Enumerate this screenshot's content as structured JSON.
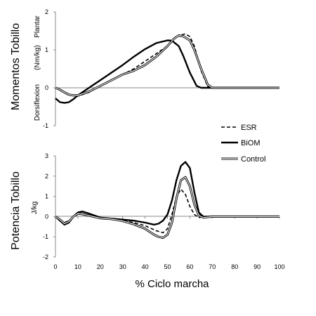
{
  "chart_data": [
    {
      "type": "line",
      "ylabel": "Momentos Tobillo",
      "units": "(Nm/kg)",
      "upper_label": "Plantar",
      "lower_label": "Dorsiflexion",
      "ylim": [
        -1,
        2
      ],
      "yticks": [
        "2",
        "1",
        "0",
        "-1"
      ],
      "xlim": [
        0,
        100
      ],
      "grid": false,
      "series": [
        {
          "name": "ESR",
          "style": "dashed",
          "x": [
            0,
            3,
            6,
            10,
            15,
            20,
            25,
            30,
            35,
            40,
            45,
            50,
            53,
            55,
            58,
            60,
            62,
            65,
            68,
            70,
            75,
            80,
            90,
            100
          ],
          "y": [
            0,
            -0.1,
            -0.2,
            -0.22,
            -0.12,
            0.05,
            0.2,
            0.35,
            0.5,
            0.7,
            0.9,
            1.1,
            1.3,
            1.38,
            1.42,
            1.35,
            1.1,
            0.45,
            0.03,
            0,
            0,
            0,
            0,
            0
          ]
        },
        {
          "name": "BiOM",
          "style": "thick",
          "x": [
            0,
            2,
            4,
            6,
            8,
            10,
            15,
            20,
            25,
            30,
            35,
            40,
            45,
            50,
            52,
            55,
            57,
            60,
            63,
            65,
            68,
            70,
            75,
            80,
            90,
            100
          ],
          "y": [
            -0.28,
            -0.38,
            -0.4,
            -0.38,
            -0.3,
            -0.2,
            0,
            0.2,
            0.4,
            0.6,
            0.82,
            1.02,
            1.18,
            1.25,
            1.24,
            1.1,
            0.85,
            0.4,
            0.05,
            0,
            0,
            0,
            0,
            0,
            0,
            0
          ]
        },
        {
          "name": "Control",
          "style": "double",
          "x": [
            0,
            2,
            4,
            6,
            8,
            10,
            15,
            20,
            25,
            30,
            35,
            40,
            45,
            50,
            53,
            55,
            57,
            60,
            62,
            65,
            68,
            70,
            75,
            80,
            90,
            100
          ],
          "y": [
            0,
            -0.05,
            -0.12,
            -0.18,
            -0.2,
            -0.2,
            -0.1,
            0.05,
            0.2,
            0.35,
            0.45,
            0.6,
            0.82,
            1.1,
            1.3,
            1.38,
            1.36,
            1.25,
            1.0,
            0.5,
            0.08,
            0,
            0,
            0,
            0,
            0
          ]
        }
      ]
    },
    {
      "type": "line",
      "ylabel": "Potencia Tobillo",
      "units": "J/kg",
      "xlabel": "% Ciclo marcha",
      "ylim": [
        -2,
        3
      ],
      "yticks": [
        "3",
        "2",
        "1",
        "0",
        "-1",
        "-2"
      ],
      "xlim": [
        0,
        100
      ],
      "xticks": [
        "0",
        "10",
        "20",
        "30",
        "40",
        "50",
        "60",
        "70",
        "80",
        "90",
        "100"
      ],
      "grid": false,
      "series": [
        {
          "name": "ESR",
          "style": "dashed",
          "x": [
            0,
            2,
            4,
            6,
            8,
            10,
            12,
            15,
            20,
            25,
            30,
            35,
            40,
            45,
            48,
            50,
            52,
            54,
            56,
            58,
            60,
            62,
            64,
            66,
            70,
            80,
            90,
            100
          ],
          "y": [
            0,
            -0.15,
            -0.3,
            -0.2,
            0,
            0.1,
            0.12,
            0.05,
            -0.05,
            -0.1,
            -0.2,
            -0.3,
            -0.45,
            -0.7,
            -0.8,
            -0.6,
            0.1,
            1.0,
            1.35,
            1.1,
            0.5,
            0.1,
            -0.05,
            0,
            0,
            0,
            0,
            0
          ]
        },
        {
          "name": "BiOM",
          "style": "thick",
          "x": [
            0,
            2,
            4,
            6,
            8,
            10,
            12,
            15,
            20,
            25,
            30,
            35,
            40,
            44,
            46,
            48,
            50,
            52,
            54,
            56,
            58,
            60,
            62,
            64,
            66,
            70,
            80,
            90,
            100
          ],
          "y": [
            0,
            -0.2,
            -0.4,
            -0.3,
            0,
            0.2,
            0.25,
            0.15,
            -0.05,
            -0.1,
            -0.15,
            -0.2,
            -0.3,
            -0.4,
            -0.35,
            -0.2,
            0.1,
            0.8,
            1.8,
            2.5,
            2.7,
            2.4,
            1.2,
            0.2,
            0,
            0,
            0,
            0,
            0
          ]
        },
        {
          "name": "Control",
          "style": "double",
          "x": [
            0,
            2,
            4,
            6,
            8,
            10,
            12,
            15,
            20,
            25,
            30,
            35,
            40,
            44,
            46,
            48,
            50,
            52,
            54,
            56,
            58,
            60,
            62,
            64,
            66,
            70,
            80,
            90,
            100
          ],
          "y": [
            0,
            -0.15,
            -0.35,
            -0.25,
            0,
            0.15,
            0.12,
            0.05,
            -0.08,
            -0.12,
            -0.22,
            -0.38,
            -0.6,
            -0.9,
            -1.0,
            -1.05,
            -0.9,
            -0.3,
            0.9,
            1.8,
            1.95,
            1.5,
            0.6,
            0.05,
            -0.05,
            0,
            0,
            0,
            0
          ]
        }
      ]
    }
  ],
  "legend": {
    "position": "right",
    "items": [
      "ESR",
      "BiOM",
      "Control"
    ]
  }
}
